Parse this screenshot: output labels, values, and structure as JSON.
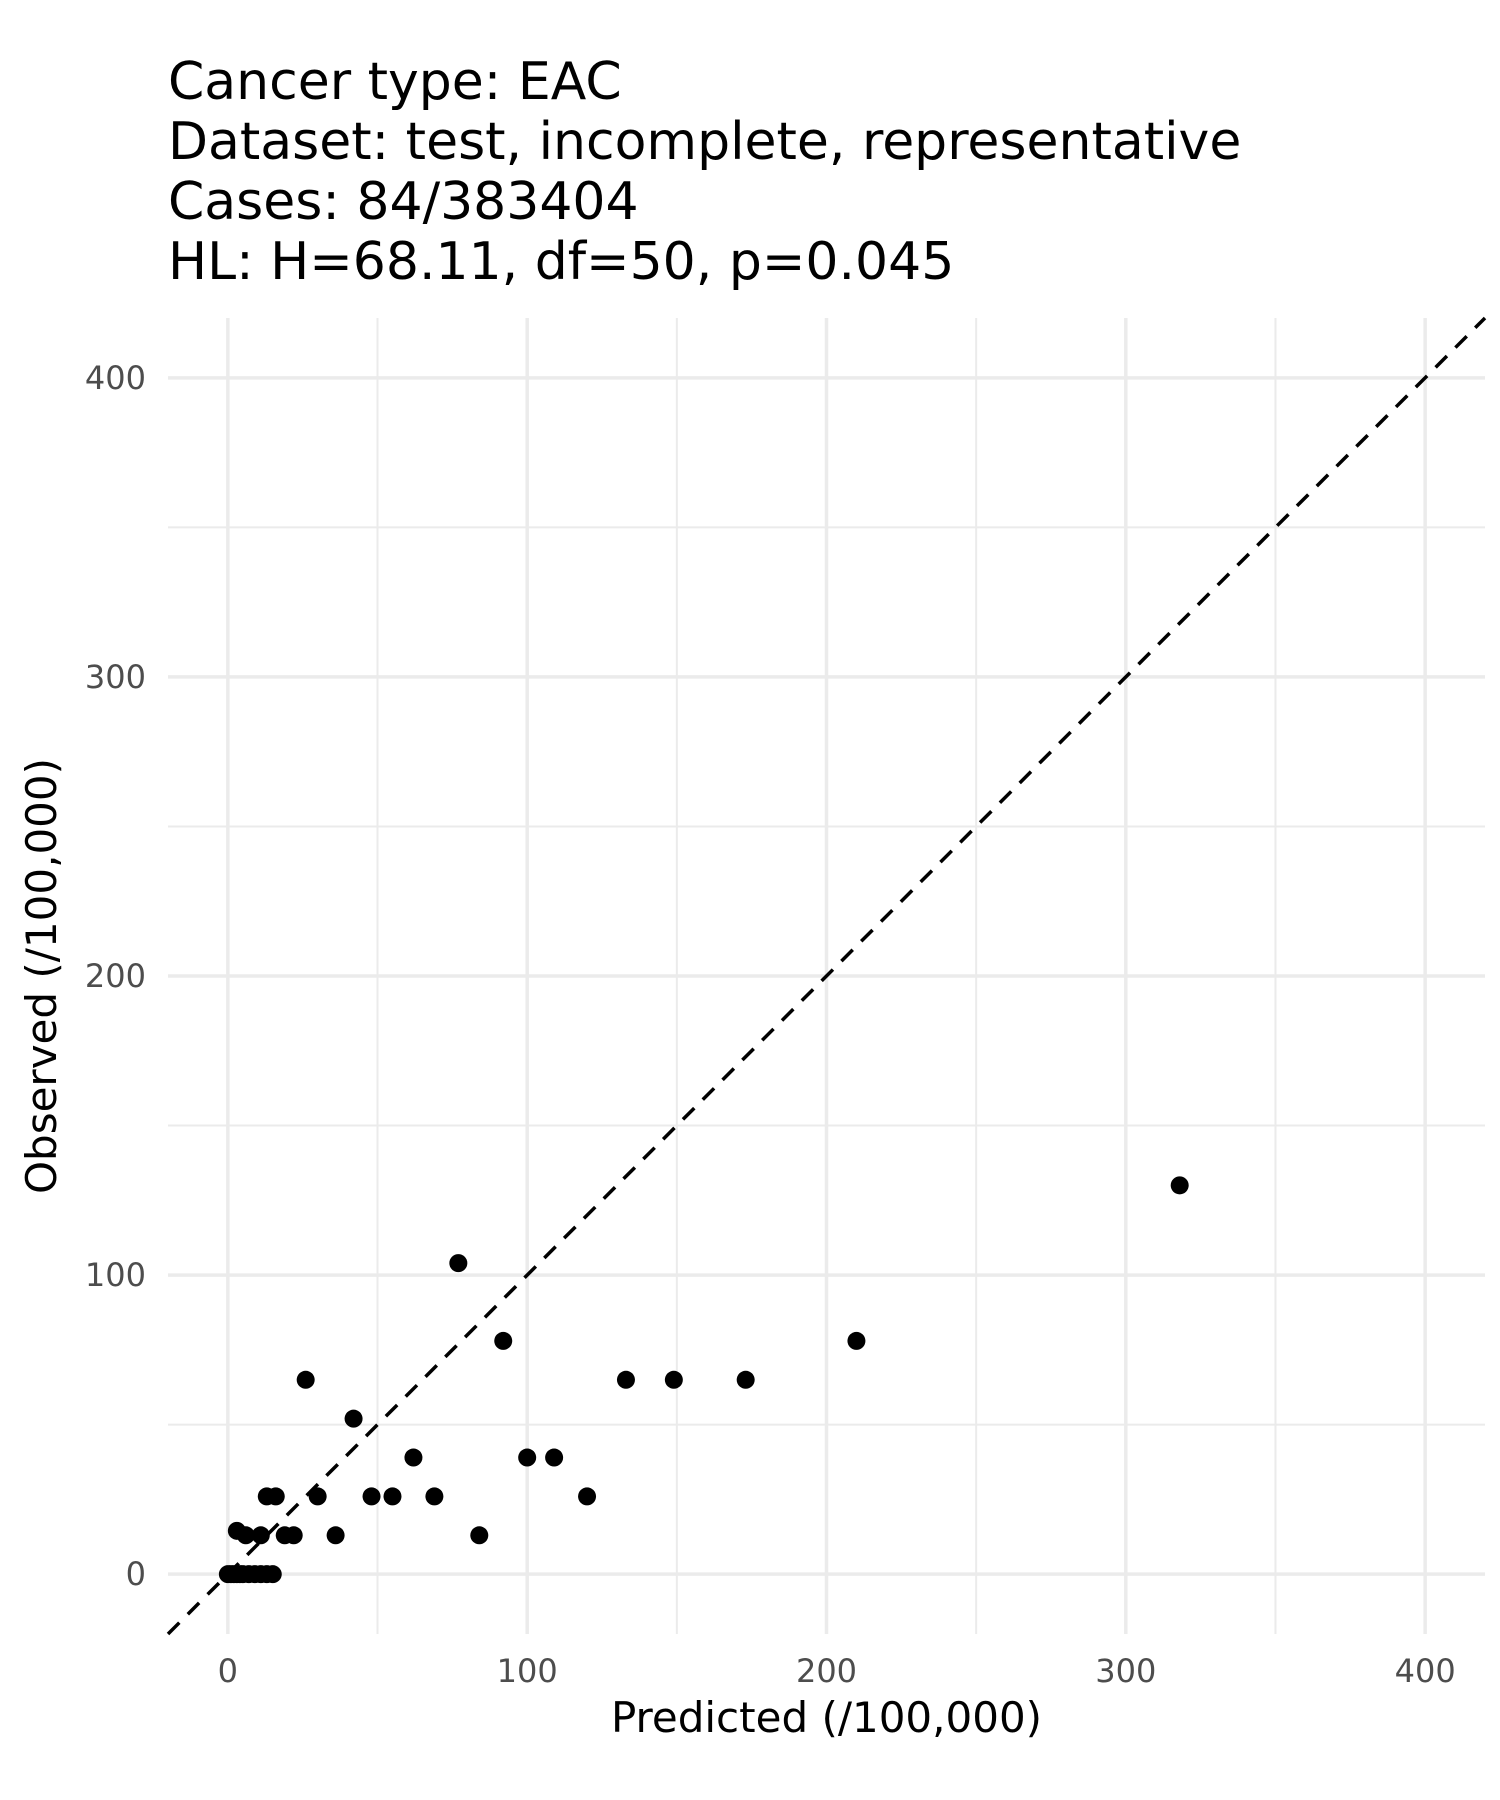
{
  "title_lines": [
    "Cancer type: EAC",
    "Dataset: test, incomplete, representative",
    "Cases: 84/383404",
    "HL: H=68.11, df=50, p=0.045"
  ],
  "chart_data": {
    "type": "scatter",
    "xlabel": "Predicted (/100,000)",
    "ylabel": "Observed (/100,000)",
    "xlim": [
      -20,
      420
    ],
    "ylim": [
      -20,
      420
    ],
    "xticks": [
      0,
      100,
      200,
      300,
      400
    ],
    "yticks": [
      0,
      100,
      200,
      300,
      400
    ],
    "grid": true,
    "reference_line": "y = x (dashed)",
    "point_color": "#000000",
    "points": [
      {
        "x": 0,
        "y": 0
      },
      {
        "x": 1,
        "y": 0
      },
      {
        "x": 2,
        "y": 0
      },
      {
        "x": 3,
        "y": 0
      },
      {
        "x": 4,
        "y": 0
      },
      {
        "x": 5,
        "y": 0
      },
      {
        "x": 7,
        "y": 0
      },
      {
        "x": 9,
        "y": 0
      },
      {
        "x": 11,
        "y": 0
      },
      {
        "x": 13,
        "y": 0
      },
      {
        "x": 15,
        "y": 0
      },
      {
        "x": 3,
        "y": 14.5
      },
      {
        "x": 6,
        "y": 13
      },
      {
        "x": 11,
        "y": 13
      },
      {
        "x": 19,
        "y": 13
      },
      {
        "x": 22,
        "y": 13
      },
      {
        "x": 36,
        "y": 13
      },
      {
        "x": 84,
        "y": 13
      },
      {
        "x": 13,
        "y": 26
      },
      {
        "x": 16,
        "y": 26
      },
      {
        "x": 30,
        "y": 26
      },
      {
        "x": 48,
        "y": 26
      },
      {
        "x": 55,
        "y": 26
      },
      {
        "x": 69,
        "y": 26
      },
      {
        "x": 120,
        "y": 26
      },
      {
        "x": 62,
        "y": 39
      },
      {
        "x": 100,
        "y": 39
      },
      {
        "x": 109,
        "y": 39
      },
      {
        "x": 42,
        "y": 52
      },
      {
        "x": 26,
        "y": 65
      },
      {
        "x": 133,
        "y": 65
      },
      {
        "x": 149,
        "y": 65
      },
      {
        "x": 173,
        "y": 65
      },
      {
        "x": 92,
        "y": 78
      },
      {
        "x": 210,
        "y": 78
      },
      {
        "x": 77,
        "y": 104
      },
      {
        "x": 318,
        "y": 130
      }
    ]
  }
}
